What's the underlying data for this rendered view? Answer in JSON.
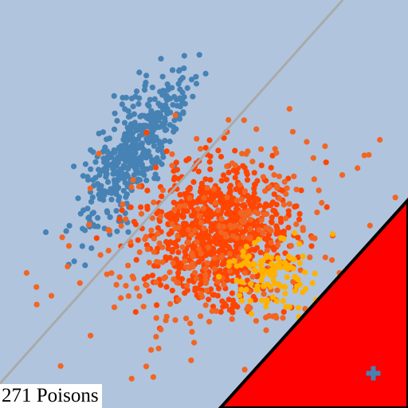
{
  "caption": "271 Poisons",
  "colors": {
    "background": "#b0c4de",
    "blue": "#4682b4",
    "orange_red": "#ff4500",
    "orange": "#f26522",
    "gold": "#ffb300",
    "boundary": "#aaaaaa",
    "red_region": "#ff0000",
    "red_edge": "#000000",
    "marker": "#4682b4"
  },
  "chart_data": {
    "type": "scatter",
    "title": "",
    "xlabel": "",
    "ylabel": "",
    "xlim": [
      0,
      1
    ],
    "ylim": [
      0,
      1
    ],
    "grid": false,
    "legend": "none",
    "clusters": [
      {
        "color_key": "blue",
        "count": 480,
        "center": [
          0.33,
          0.63
        ],
        "spread_along": 0.105,
        "spread_across": 0.035,
        "angle_deg": 60
      },
      {
        "color_key": "orange_red",
        "count": 820,
        "center": [
          0.53,
          0.43
        ],
        "spread_along": 0.085,
        "spread_across": 0.085,
        "angle_deg": 0
      },
      {
        "color_key": "orange",
        "count": 300,
        "center": [
          0.53,
          0.4
        ],
        "spread_along": 0.17,
        "spread_across": 0.12,
        "angle_deg": 20
      },
      {
        "color_key": "gold",
        "count": 110,
        "center": [
          0.66,
          0.33
        ],
        "spread_along": 0.05,
        "spread_across": 0.04,
        "angle_deg": 0
      }
    ],
    "boundary_line": {
      "from": [
        0.0,
        0.06
      ],
      "to": [
        0.84,
        1.0
      ]
    },
    "region": {
      "vertices": [
        [
          0.54,
          0.0
        ],
        [
          1.0,
          0.51
        ],
        [
          1.0,
          0.0
        ]
      ]
    },
    "marker_point": {
      "x": 0.915,
      "y": 0.085,
      "symbol": "plus"
    }
  }
}
